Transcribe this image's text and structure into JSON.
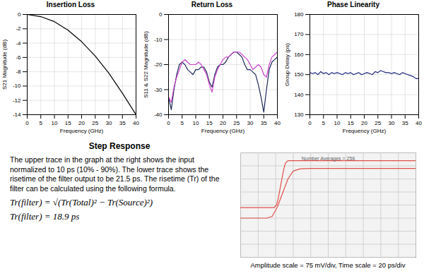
{
  "chart_data": [
    {
      "type": "line",
      "title": "Insertion Loss",
      "x_label": "Frequency (GHz)",
      "y_label": "S21 Magnitude (dB)",
      "x": [
        0,
        5,
        10,
        15,
        20,
        25,
        30,
        35,
        40
      ],
      "series": [
        {
          "color": "#000000",
          "values": [
            0,
            -0.3,
            -1.0,
            -2.2,
            -3.8,
            -5.8,
            -8.2,
            -11.0,
            -14.0
          ]
        }
      ],
      "xlim": [
        0,
        40
      ],
      "ylim": [
        -14,
        0
      ],
      "xticks": [
        0,
        5,
        10,
        15,
        20,
        25,
        30,
        35,
        40
      ],
      "yticks": [
        -14,
        -12,
        -10,
        -8,
        -6,
        -4,
        -2,
        0
      ],
      "grid": true
    },
    {
      "type": "line",
      "title": "Return Loss",
      "x_label": "Frequency (GHz)",
      "y_label": "S11 & S22 Magnitude (dB)",
      "x": [
        0,
        1,
        2,
        3,
        4,
        5,
        6,
        7,
        8,
        9,
        10,
        11,
        12,
        13,
        14,
        15,
        16,
        17,
        18,
        19,
        20,
        21,
        22,
        23,
        24,
        25,
        26,
        27,
        28,
        29,
        30,
        31,
        32,
        33,
        34,
        35,
        36,
        37,
        38,
        39,
        40
      ],
      "series": [
        {
          "color": "#1f2a5a",
          "values": [
            -33,
            -38,
            -30,
            -24,
            -20,
            -19,
            -20,
            -22,
            -23,
            -24,
            -22,
            -22,
            -21,
            -21,
            -23,
            -27,
            -29,
            -24,
            -21,
            -20,
            -20,
            -19,
            -17,
            -16,
            -15,
            -15,
            -16,
            -17,
            -20,
            -22,
            -22,
            -23,
            -24,
            -28,
            -33,
            -39,
            -30,
            -22,
            -19,
            -18,
            -17
          ]
        },
        {
          "color": "#cc44cc",
          "values": [
            -33,
            -35,
            -29,
            -25,
            -22,
            -19,
            -18,
            -19,
            -20,
            -20,
            -20,
            -19,
            -20,
            -22,
            -24,
            -28,
            -31,
            -25,
            -22,
            -20,
            -18,
            -17,
            -17,
            -16,
            -15,
            -15,
            -15,
            -16,
            -17,
            -18,
            -20,
            -22,
            -21,
            -20,
            -21,
            -24,
            -25,
            -20,
            -17,
            -16,
            -15
          ]
        }
      ],
      "xlim": [
        0,
        40
      ],
      "ylim": [
        -40,
        0
      ],
      "xticks": [
        0,
        5,
        10,
        15,
        20,
        25,
        30,
        35,
        40
      ],
      "yticks": [
        -40,
        -30,
        -20,
        -10,
        0
      ],
      "grid": true
    },
    {
      "type": "line",
      "title": "Phase Linearity",
      "x_label": "Frequency (GHz)",
      "y_label": "Group Delay (ps)",
      "x": [
        0,
        1,
        2,
        3,
        4,
        5,
        6,
        7,
        8,
        9,
        10,
        11,
        12,
        13,
        14,
        15,
        16,
        17,
        18,
        19,
        20,
        21,
        22,
        23,
        24,
        25,
        26,
        27,
        28,
        29,
        30,
        31,
        32,
        33,
        34,
        35,
        36,
        37,
        38,
        39,
        40
      ],
      "series": [
        {
          "color": "#1a237e",
          "values": [
            151,
            150.5,
            151,
            150,
            151.5,
            150.5,
            151,
            150,
            151,
            150.5,
            151,
            150.5,
            150,
            151,
            150.5,
            151,
            150,
            150.5,
            151,
            150,
            150.5,
            151,
            150.5,
            150,
            151.5,
            151,
            152,
            151.5,
            151,
            151,
            150.5,
            151,
            150.5,
            150,
            151,
            150.5,
            150,
            149.5,
            149,
            148,
            148
          ]
        }
      ],
      "xlim": [
        0,
        40
      ],
      "ylim": [
        130,
        180
      ],
      "xticks": [
        0,
        5,
        10,
        15,
        20,
        25,
        30,
        35,
        40
      ],
      "yticks": [
        130,
        140,
        150,
        160,
        170,
        180
      ],
      "grid": true
    },
    {
      "type": "line",
      "annotation": "Number Averages = 256",
      "caption": "Amplitude scale = 75 mV/div, Time scale = 20 ps/div",
      "series": [
        {
          "color": "#e0504a",
          "x": [
            0,
            38,
            41,
            43,
            46,
            49,
            51,
            54,
            200
          ],
          "values": [
            285,
            285,
            300,
            340,
            420,
            500,
            540,
            555,
            555
          ]
        },
        {
          "color": "#e0504a",
          "x": [
            0,
            30,
            36,
            42,
            48,
            54,
            60,
            68,
            80,
            200
          ],
          "values": [
            225,
            225,
            235,
            290,
            370,
            450,
            495,
            508,
            510,
            510
          ]
        }
      ],
      "xlim": [
        0,
        200
      ],
      "ylim": [
        0,
        600
      ],
      "xticks": [
        0,
        20,
        40,
        60,
        80,
        100,
        120,
        140,
        160,
        180,
        200
      ],
      "yticks": [
        0,
        75,
        150,
        225,
        300,
        375,
        450,
        525,
        600
      ],
      "grid": true,
      "tick_labels": false
    }
  ],
  "text_block": {
    "title": "Step Response",
    "paragraph": "The upper trace in the graph at the right shows the input normalized to 10 ps (10% - 90%).  The lower trace shows the risetime of the filter output to be 21.5 ps.  The risetime (Tr) of the filter can be calculated using the following formula.",
    "formulas": [
      "Tr(filter) = √(Tr(Total)² − Tr(Source)²)",
      "Tr(filter) = 18.9 ps"
    ]
  }
}
